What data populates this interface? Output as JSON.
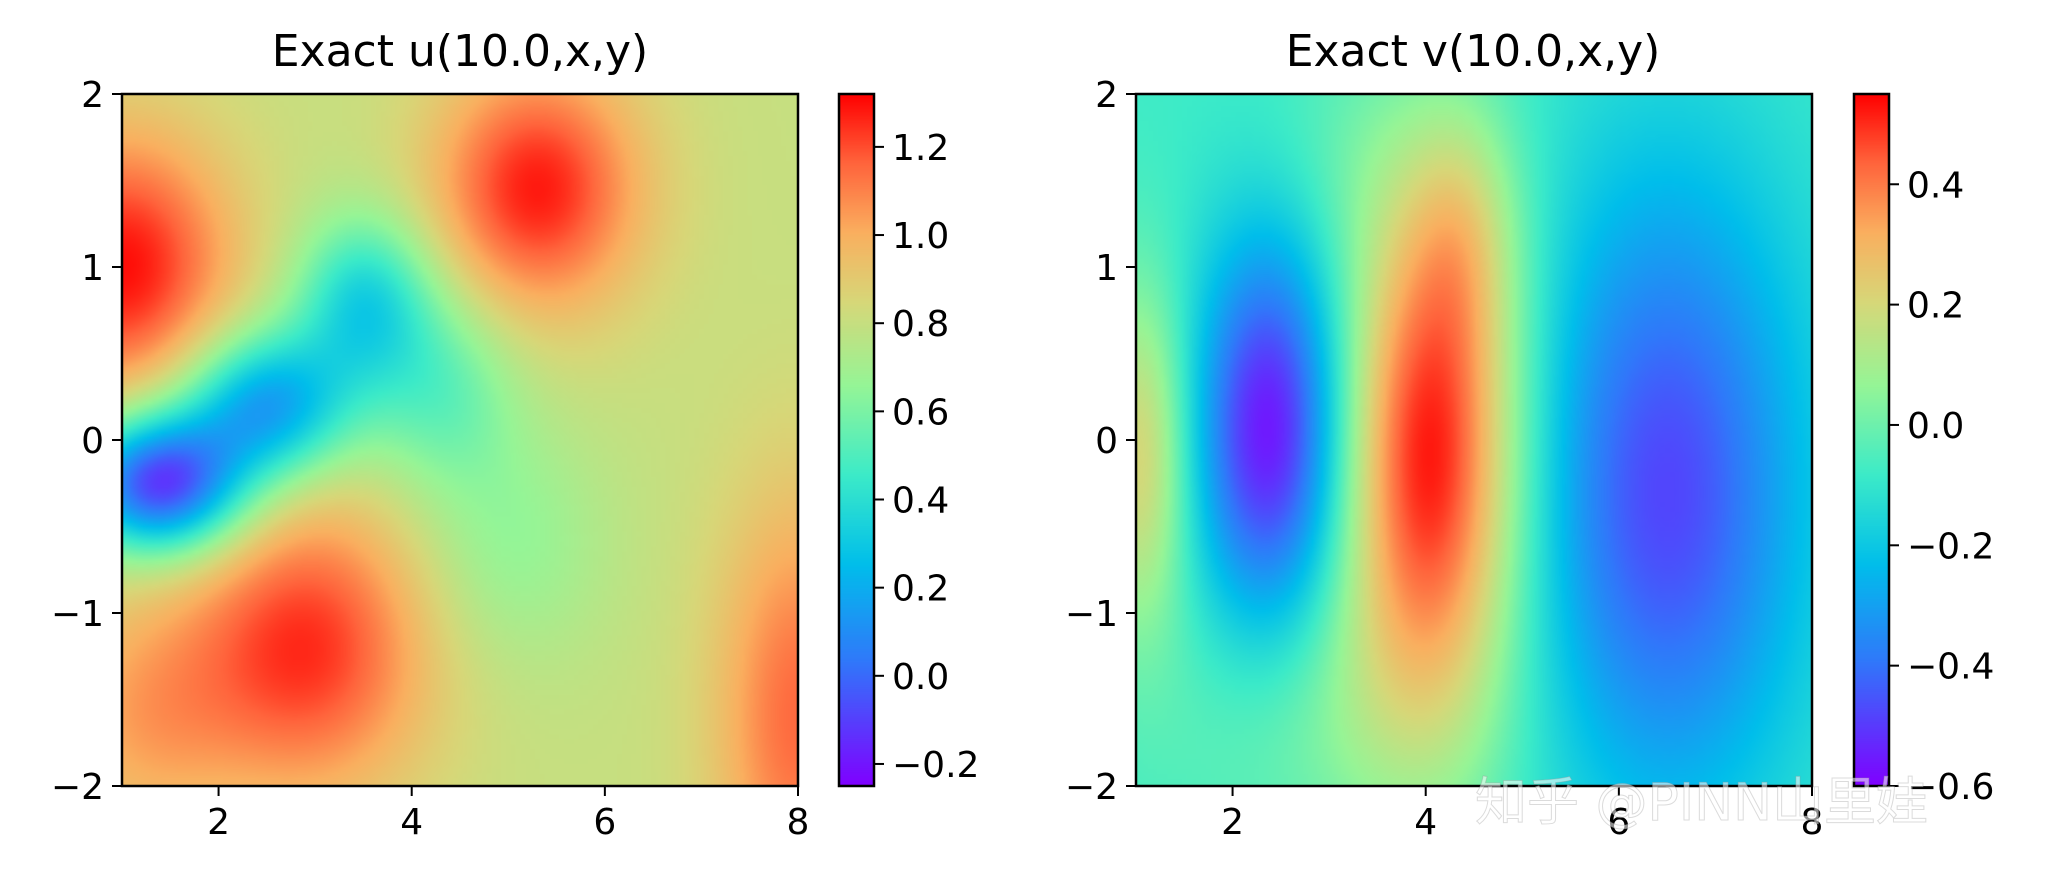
{
  "chart_data": [
    {
      "type": "heatmap",
      "title": "Exact u(10.0,x,y)",
      "xlabel": "",
      "ylabel": "",
      "xlim": [
        1,
        8
      ],
      "ylim": [
        -2,
        2
      ],
      "x_ticks": [
        2,
        4,
        6,
        8
      ],
      "x_tick_labels": [
        "2",
        "4",
        "6",
        "8"
      ],
      "y_ticks": [
        -2,
        -1,
        0,
        1,
        2
      ],
      "y_tick_labels": [
        "−2",
        "−1",
        "0",
        "1",
        "2"
      ],
      "colormap": "rainbow",
      "colorbar": {
        "vmin": -0.25,
        "vmax": 1.32,
        "ticks": [
          -0.2,
          0.0,
          0.2,
          0.4,
          0.6,
          0.8,
          1.0,
          1.2
        ],
        "tick_labels": [
          "−0.2",
          "0.0",
          "0.2",
          "0.4",
          "0.6",
          "0.8",
          "1.0",
          "1.2"
        ]
      },
      "field": {
        "base": 0.8,
        "blobs": [
          {
            "x": 1.0,
            "y": 1.0,
            "sx": 0.8,
            "sy": 0.55,
            "value": 0.5
          },
          {
            "x": 5.3,
            "y": 1.45,
            "sx": 0.75,
            "sy": 0.5,
            "value": 0.48
          },
          {
            "x": 2.9,
            "y": -1.2,
            "sx": 0.9,
            "sy": 0.6,
            "value": 0.45
          },
          {
            "x": 1.2,
            "y": -1.6,
            "sx": 0.7,
            "sy": 0.5,
            "value": 0.2
          },
          {
            "x": 8.0,
            "y": -1.6,
            "sx": 0.6,
            "sy": 0.9,
            "value": 0.35
          },
          {
            "x": 1.4,
            "y": -0.25,
            "sx": 0.6,
            "sy": 0.28,
            "value": -0.95
          },
          {
            "x": 2.5,
            "y": 0.2,
            "sx": 0.6,
            "sy": 0.3,
            "value": -0.65
          },
          {
            "x": 3.5,
            "y": 0.8,
            "sx": 0.5,
            "sy": 0.35,
            "value": -0.45
          },
          {
            "x": 4.3,
            "y": 0.3,
            "sx": 0.55,
            "sy": 0.4,
            "value": -0.25
          },
          {
            "x": 5.0,
            "y": -0.6,
            "sx": 0.7,
            "sy": 0.5,
            "value": -0.15
          }
        ]
      }
    },
    {
      "type": "heatmap",
      "title": "Exact v(10.0,x,y)",
      "xlabel": "",
      "ylabel": "",
      "xlim": [
        1,
        8
      ],
      "ylim": [
        -2,
        2
      ],
      "x_ticks": [
        2,
        4,
        6,
        8
      ],
      "x_tick_labels": [
        "2",
        "4",
        "6",
        "8"
      ],
      "y_ticks": [
        -2,
        -1,
        0,
        1,
        2
      ],
      "y_tick_labels": [
        "−2",
        "−1",
        "0",
        "1",
        "2"
      ],
      "colormap": "rainbow",
      "colorbar": {
        "vmin": -0.6,
        "vmax": 0.55,
        "ticks": [
          -0.6,
          -0.4,
          -0.2,
          0.0,
          0.2,
          0.4
        ],
        "tick_labels": [
          "−0.6",
          "−0.4",
          "−0.2",
          "0.0",
          "0.2",
          "0.4"
        ]
      },
      "field": {
        "base": -0.08,
        "blobs": [
          {
            "x": 1.05,
            "y": -0.1,
            "sx": 0.35,
            "sy": 0.7,
            "value": 0.3
          },
          {
            "x": 2.4,
            "y": 0.05,
            "sx": 0.55,
            "sy": 0.8,
            "value": -0.5
          },
          {
            "x": 4.05,
            "y": -0.1,
            "sx": 0.65,
            "sy": 1.05,
            "value": 0.62
          },
          {
            "x": 4.4,
            "y": 1.2,
            "sx": 0.4,
            "sy": 0.5,
            "value": 0.15
          },
          {
            "x": 6.5,
            "y": -0.3,
            "sx": 1.0,
            "sy": 1.3,
            "value": -0.4
          },
          {
            "x": 3.0,
            "y": -1.6,
            "sx": 1.2,
            "sy": 0.6,
            "value": 0.1
          },
          {
            "x": 3.2,
            "y": 1.6,
            "sx": 0.8,
            "sy": 0.5,
            "value": 0.05
          }
        ]
      }
    }
  ],
  "watermark": "知乎 @PINN山里娃"
}
